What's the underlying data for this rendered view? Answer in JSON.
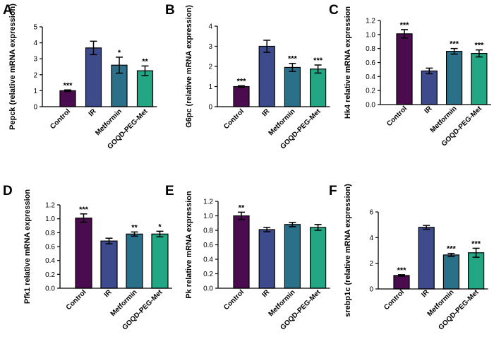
{
  "colors": {
    "Control": "#4a0c4e",
    "IR": "#3d4b8c",
    "Metformin": "#2a7089",
    "GOQD-PEG-Met": "#23a684",
    "axis": "#000000"
  },
  "chart_data": [
    {
      "panel": "A",
      "type": "bar",
      "ylabel": "Pepck (relative mRNA expression)",
      "categories": [
        "Control",
        "IR",
        "Metformin",
        "GOQD-PEG-Met"
      ],
      "values": [
        1.0,
        3.68,
        2.6,
        2.25
      ],
      "errors": [
        0.05,
        0.42,
        0.5,
        0.3
      ],
      "significance": [
        "***",
        "",
        "*",
        "**"
      ],
      "ylim": [
        0,
        5
      ],
      "yticks": [
        "0",
        "1",
        "2",
        "3",
        "4",
        "5"
      ]
    },
    {
      "panel": "B",
      "type": "bar",
      "ylabel": "G6pc (relative mRNA expression)",
      "categories": [
        "Control",
        "IR",
        "Metformin",
        "GOQD-PEG-Met"
      ],
      "values": [
        1.0,
        3.0,
        1.95,
        1.87
      ],
      "errors": [
        0.04,
        0.3,
        0.2,
        0.2
      ],
      "significance": [
        "***",
        "",
        "***",
        "***"
      ],
      "ylim": [
        0,
        4
      ],
      "yticks": [
        "0",
        "1",
        "2",
        "3",
        "4"
      ]
    },
    {
      "panel": "C",
      "type": "bar",
      "ylabel": "Hk4 relative mRNA expression",
      "categories": [
        "Control",
        "IR",
        "Metformin",
        "GOQD-PEG-Met"
      ],
      "values": [
        1.01,
        0.48,
        0.76,
        0.73
      ],
      "errors": [
        0.06,
        0.04,
        0.04,
        0.05
      ],
      "significance": [
        "***",
        "",
        "***",
        "***"
      ],
      "ylim": [
        0,
        1.2
      ],
      "yticks": [
        "0.0",
        "0.2",
        "0.4",
        "0.6",
        "0.8",
        "1.0",
        "1.2"
      ]
    },
    {
      "panel": "D",
      "type": "bar",
      "ylabel": "Pfk1 relative mRNA expression",
      "categories": [
        "Control",
        "IR",
        "Metformin",
        "GOQD-PEG-Met"
      ],
      "values": [
        1.01,
        0.68,
        0.78,
        0.78
      ],
      "errors": [
        0.06,
        0.04,
        0.03,
        0.04
      ],
      "significance": [
        "***",
        "",
        "**",
        "*"
      ],
      "ylim": [
        0,
        1.2
      ],
      "yticks": [
        "0.0",
        "0.2",
        "0.4",
        "0.6",
        "0.8",
        "1.0",
        "1.2"
      ]
    },
    {
      "panel": "E",
      "type": "bar",
      "ylabel": "Pk relative mRNA expression",
      "categories": [
        "Control",
        "IR",
        "Metformin",
        "GOQD-PEG-Met"
      ],
      "values": [
        1.0,
        0.81,
        0.88,
        0.84
      ],
      "errors": [
        0.05,
        0.03,
        0.03,
        0.04
      ],
      "significance": [
        "**",
        "",
        "",
        ""
      ],
      "ylim": [
        0,
        1.2
      ],
      "yticks": [
        "0.0",
        "0.2",
        "0.4",
        "0.6",
        "0.8",
        "1.0",
        "1.2"
      ]
    },
    {
      "panel": "F",
      "type": "bar",
      "ylabel": "srebp1c (relative mRNA expression)",
      "categories": [
        "Control",
        "IR",
        "Metformin",
        "GOQD-PEG-Met"
      ],
      "values": [
        1.05,
        4.8,
        2.65,
        2.82
      ],
      "errors": [
        0.06,
        0.15,
        0.12,
        0.35
      ],
      "significance": [
        "***",
        "",
        "***",
        "***"
      ],
      "ylim": [
        0,
        6
      ],
      "yticks": [
        "0",
        "2",
        "4",
        "6"
      ]
    }
  ]
}
